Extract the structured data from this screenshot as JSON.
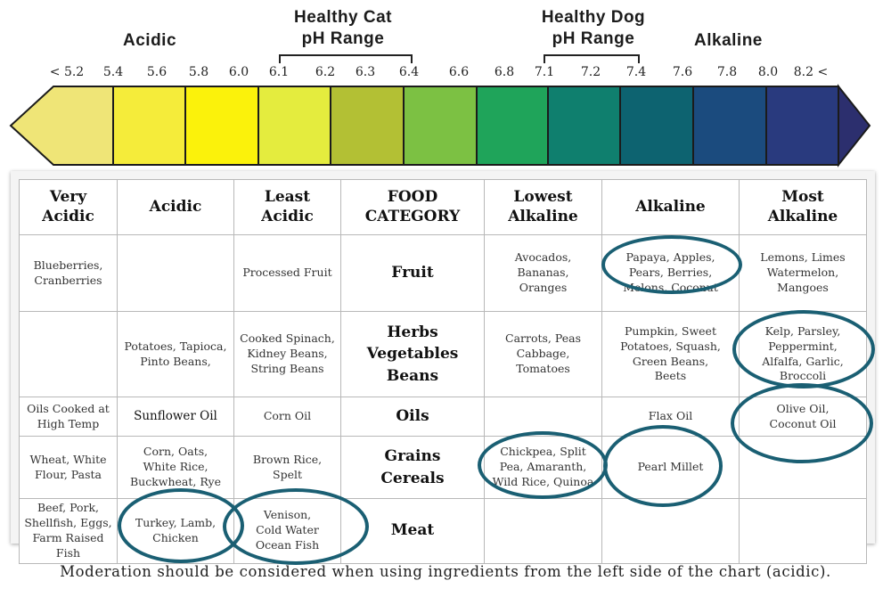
{
  "scale": {
    "left_label": "Acidic",
    "right_label": "Alkaline",
    "cat_range": {
      "title_line1": "Healthy Cat",
      "title_line2": "pH Range",
      "from": "6.1",
      "to": "6.4"
    },
    "dog_range": {
      "title_line1": "Healthy Dog",
      "title_line2": "pH Range",
      "from": "7.1",
      "to": "7.4"
    },
    "ticks": [
      "< 5.2",
      "5.4",
      "5.6",
      "5.8",
      "6.0",
      "6.1",
      "6.2",
      "6.3",
      "6.4",
      "6.6",
      "6.8",
      "7.1",
      "7.2",
      "7.4",
      "7.6",
      "7.8",
      "8.0",
      "8.2 <"
    ],
    "segment_colors": [
      "#efe577",
      "#f5ec3a",
      "#fbf20b",
      "#e4ec3e",
      "#b3c034",
      "#7cc143",
      "#1fa45a",
      "#0f7f6e",
      "#0d6370",
      "#1b4b7e",
      "#293a7e",
      "#2c2f6e"
    ]
  },
  "chart_data": {
    "type": "table",
    "columns": [
      "Very Acidic",
      "Acidic",
      "Least Acidic",
      "FOOD CATEGORY",
      "Lowest Alkaline",
      "Alkaline",
      "Most Alkaline"
    ],
    "rows": [
      [
        "Blueberries, Cranberries",
        "",
        "Processed Fruit",
        "Fruit",
        "Avocados, Bananas, Oranges",
        "Papaya, Apples, Pears, Berries, Melons, Coconut",
        "Lemons, Limes Watermelon, Mangoes"
      ],
      [
        "",
        "Potatoes, Tapioca, Pinto Beans,",
        "Cooked Spinach, Kidney Beans, String Beans",
        "Herbs Vegetables Beans",
        "Carrots, Peas Cabbage, Tomatoes",
        "Pumpkin, Sweet Potatoes, Squash, Green Beans, Beets",
        "Kelp, Parsley, Peppermint, Alfalfa, Garlic, Broccoli"
      ],
      [
        "Oils Cooked at High Temp",
        "Sunflower Oil",
        "Corn Oil",
        "Oils",
        "",
        "Flax Oil",
        "Olive Oil, Coconut Oil"
      ],
      [
        "Wheat, White Flour, Pasta",
        "Corn, Oats, White Rice, Buckwheat, Rye",
        "Brown Rice, Spelt",
        "Grains Cereals",
        "Chickpea, Split Pea, Amaranth, Wild Rice, Quinoa",
        "Pearl Millet",
        ""
      ],
      [
        "Beef, Pork, Shellfish, Eggs, Farm Raised Fish",
        "Turkey, Lamb, Chicken",
        "Venison, Cold Water Ocean Fish",
        "Meat",
        "",
        "",
        ""
      ]
    ],
    "highlighted": [
      "Papaya, Apples, Pears, Berries, Melons, Coconut",
      "Kelp, Parsley, Peppermint, Alfalfa, Garlic, Broccoli",
      "Olive Oil, Coconut Oil",
      "Chickpea, Split Pea, Amaranth, Wild Rice, Quinoa",
      "Pearl Millet",
      "Turkey, Lamb, Chicken",
      "Venison, Cold Water Ocean Fish"
    ],
    "highlight_color": "#1a5f73"
  },
  "table_display": {
    "headers": [
      [
        "Very",
        "Acidic"
      ],
      [
        "Acidic"
      ],
      [
        "Least",
        "Acidic"
      ],
      [
        "FOOD",
        "CATEGORY"
      ],
      [
        "Lowest",
        "Alkaline"
      ],
      [
        "Alkaline"
      ],
      [
        "Most",
        "Alkaline"
      ]
    ],
    "rows": [
      [
        [
          "Blueberries,",
          "Cranberries"
        ],
        [],
        [
          "Processed Fruit"
        ],
        [
          "Fruit"
        ],
        [
          "Avocados,",
          "Bananas,",
          "Oranges"
        ],
        [
          "Papaya, Apples,",
          "Pears, Berries,",
          "Melons, Coconut"
        ],
        [
          "Lemons, Limes",
          "Watermelon,",
          "Mangoes"
        ]
      ],
      [
        [],
        [
          "Potatoes, Tapioca,",
          "Pinto Beans,"
        ],
        [
          "Cooked Spinach,",
          "Kidney Beans,",
          "String Beans"
        ],
        [
          "Herbs",
          "Vegetables",
          "Beans"
        ],
        [
          "Carrots, Peas",
          "Cabbage,",
          "Tomatoes"
        ],
        [
          "Pumpkin, Sweet",
          "Potatoes, Squash,",
          "Green Beans,",
          "Beets"
        ],
        [
          "Kelp, Parsley,",
          "Peppermint,",
          "Alfalfa, Garlic,",
          "Broccoli"
        ]
      ],
      [
        [
          "Oils Cooked at",
          "High Temp"
        ],
        [
          "Sunflower Oil"
        ],
        [
          "Corn Oil"
        ],
        [
          "Oils"
        ],
        [],
        [
          "Flax Oil"
        ],
        [
          "Olive Oil,",
          "Coconut Oil"
        ]
      ],
      [
        [
          "Wheat, White",
          "Flour, Pasta"
        ],
        [
          "Corn, Oats,",
          "White Rice,",
          "Buckwheat, Rye"
        ],
        [
          "Brown Rice,",
          "Spelt"
        ],
        [
          "Grains",
          "Cereals"
        ],
        [
          "Chickpea, Split",
          "Pea, Amaranth,",
          "Wild Rice, Quinoa"
        ],
        [
          "Pearl Millet"
        ],
        []
      ],
      [
        [
          "Beef, Pork,",
          "Shellfish, Eggs,",
          "Farm Raised Fish"
        ],
        [
          "Turkey, Lamb,",
          "Chicken"
        ],
        [
          "Venison,",
          "Cold Water",
          "Ocean Fish"
        ],
        [
          "Meat"
        ],
        [],
        [],
        []
      ]
    ]
  },
  "footer": "Moderation should be considered when using ingredients from the left side of the chart (acidic)."
}
